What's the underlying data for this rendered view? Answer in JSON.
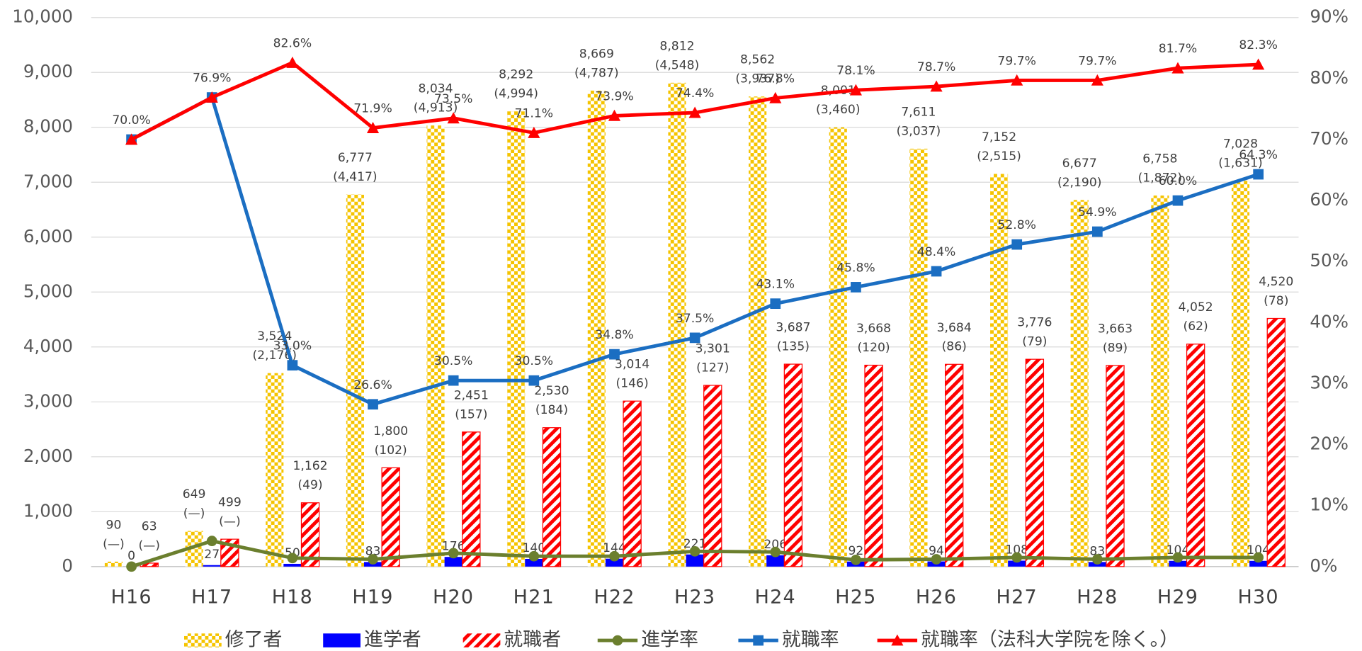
{
  "chart_data": {
    "type": "bar",
    "categories": [
      "H16",
      "H17",
      "H18",
      "H19",
      "H20",
      "H21",
      "H22",
      "H23",
      "H24",
      "H25",
      "H26",
      "H27",
      "H28",
      "H29",
      "H30"
    ],
    "ylim": [
      0,
      10000
    ],
    "yticks": [
      0,
      {
        "value": 1000,
        "label": "1,000"
      },
      {
        "value": 2000,
        "label": "2,000"
      },
      {
        "value": 3000,
        "label": "3,000"
      },
      {
        "value": 4000,
        "label": "4,000"
      },
      {
        "value": 5000,
        "label": "5,000"
      },
      {
        "value": 6000,
        "label": "6,000"
      },
      {
        "value": 7000,
        "label": "7,000"
      },
      {
        "value": 8000,
        "label": "8,000"
      },
      {
        "value": 9000,
        "label": "9,000"
      },
      {
        "value": 10000,
        "label": "10,000"
      }
    ],
    "y2lim": [
      0,
      90
    ],
    "y2ticks": [
      {
        "value": 0,
        "label": "0%"
      },
      {
        "value": 10,
        "label": "10%"
      },
      {
        "value": 20,
        "label": "20%"
      },
      {
        "value": 30,
        "label": "30%"
      },
      {
        "value": 40,
        "label": "40%"
      },
      {
        "value": 50,
        "label": "50%"
      },
      {
        "value": 60,
        "label": "60%"
      },
      {
        "value": 70,
        "label": "70%"
      },
      {
        "value": 80,
        "label": "80%"
      },
      {
        "value": 90,
        "label": "90%"
      }
    ],
    "grid": true,
    "series": [
      {
        "name": "修了者",
        "type": "bar",
        "color": "#f5c400",
        "values": [
          90,
          649,
          3524,
          6777,
          8034,
          8292,
          8669,
          8812,
          8562,
          8001,
          7611,
          7152,
          6677,
          6758,
          7028
        ],
        "value_labels": [
          "90",
          "649",
          "3,524",
          "6,777",
          "8,034",
          "8,292",
          "8,669",
          "8,812",
          "8,562",
          "8,001",
          "7,611",
          "7,152",
          "6,677",
          "6,758",
          "7,028"
        ],
        "sub_labels": [
          "(—)",
          "(—)",
          "(2,176)",
          "(4,417)",
          "(4,913)",
          "(4,994)",
          "(4,787)",
          "(4,548)",
          "(3,937)",
          "(3,460)",
          "(3,037)",
          "(2,515)",
          "(2,190)",
          "(1,872)",
          "(1,631)"
        ]
      },
      {
        "name": "進学者",
        "type": "bar",
        "color": "#0000ff",
        "values": [
          0,
          27,
          50,
          83,
          176,
          140,
          144,
          221,
          206,
          92,
          94,
          108,
          83,
          104,
          104
        ]
      },
      {
        "name": "就職者",
        "type": "bar",
        "color": "#ff0000",
        "values": [
          63,
          499,
          1162,
          1800,
          2451,
          2530,
          3014,
          3301,
          3687,
          3668,
          3684,
          3776,
          3663,
          4052,
          4520
        ],
        "value_labels": [
          "63",
          "499",
          "1,162",
          "1,800",
          "2,451",
          "2,530",
          "3,014",
          "3,301",
          "3,687",
          "3,668",
          "3,684",
          "3,776",
          "3,663",
          "4,052",
          "4,520"
        ],
        "sub_labels": [
          "(—)",
          "(—)",
          "(49)",
          "(102)",
          "(157)",
          "(184)",
          "(146)",
          "(127)",
          "(135)",
          "(120)",
          "(86)",
          "(79)",
          "(89)",
          "(62)",
          "(78)"
        ]
      },
      {
        "name": "進学率",
        "type": "line",
        "axis": "y2",
        "color": "#6b7f2e",
        "marker": "circle",
        "values": [
          0,
          4.2,
          1.4,
          1.2,
          2.2,
          1.7,
          1.7,
          2.5,
          2.4,
          1.1,
          1.2,
          1.5,
          1.2,
          1.5,
          1.5
        ]
      },
      {
        "name": "就職率",
        "type": "line",
        "axis": "y2",
        "color": "#1b6ec2",
        "marker": "square",
        "values": [
          70.0,
          76.9,
          33.0,
          26.6,
          30.5,
          30.5,
          34.8,
          37.5,
          43.1,
          45.8,
          48.4,
          52.8,
          54.9,
          60.0,
          64.3
        ],
        "value_labels": [
          null,
          null,
          "33.0%",
          "26.6%",
          "30.5%",
          "30.5%",
          "34.8%",
          "37.5%",
          "43.1%",
          "45.8%",
          "48.4%",
          "52.8%",
          "54.9%",
          "60.0%",
          "64.3%"
        ]
      },
      {
        "name": "就職率（法科大学院を除く。）",
        "type": "line",
        "axis": "y2",
        "color": "#ff0000",
        "marker": "triangle",
        "values": [
          70.0,
          76.9,
          82.6,
          71.9,
          73.5,
          71.1,
          73.9,
          74.4,
          76.8,
          78.1,
          78.7,
          79.7,
          79.7,
          81.7,
          82.3
        ],
        "value_labels": [
          "70.0%",
          "76.9%",
          "82.6%",
          "71.9%",
          "73.5%",
          "71.1%",
          "73.9%",
          "74.4%",
          "76.8%",
          "78.1%",
          "78.7%",
          "79.7%",
          "79.7%",
          "81.7%",
          "82.3%"
        ]
      }
    ]
  }
}
